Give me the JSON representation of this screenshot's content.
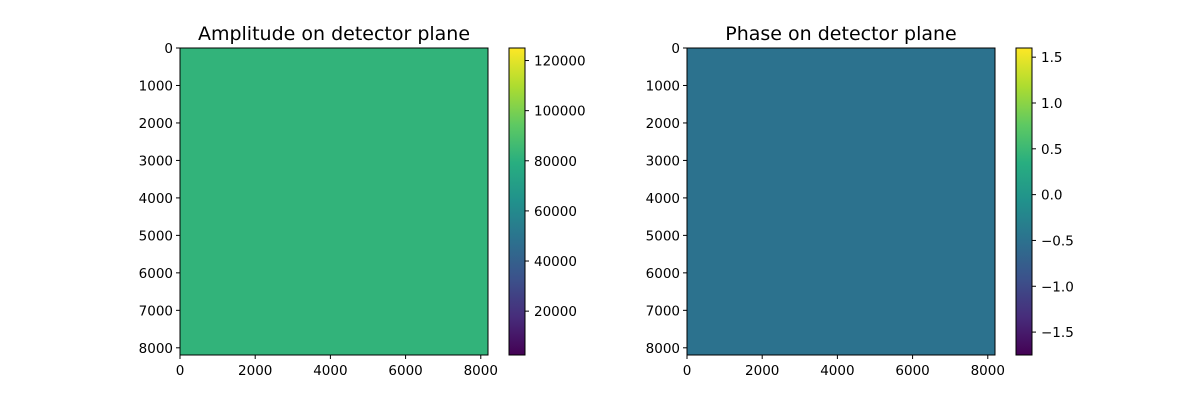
{
  "chart_data": [
    {
      "type": "heatmap",
      "title": "Amplitude on detector plane",
      "xlabel": "",
      "ylabel": "",
      "xlim": [
        0,
        8192
      ],
      "ylim": [
        8192,
        0
      ],
      "xticks": [
        0,
        2000,
        4000,
        6000,
        8000
      ],
      "yticks": [
        0,
        1000,
        2000,
        3000,
        4000,
        5000,
        6000,
        7000,
        8000
      ],
      "fill_value": 82000,
      "colormap": "viridis",
      "colorbar": {
        "range": [
          2500,
          125000
        ],
        "ticks": [
          20000,
          40000,
          60000,
          80000,
          100000,
          120000
        ]
      }
    },
    {
      "type": "heatmap",
      "title": "Phase on detector plane",
      "xlabel": "",
      "ylabel": "",
      "xlim": [
        0,
        8192
      ],
      "ylim": [
        8192,
        0
      ],
      "xticks": [
        0,
        2000,
        4000,
        6000,
        8000
      ],
      "yticks": [
        0,
        1000,
        2000,
        3000,
        4000,
        5000,
        6000,
        7000,
        8000
      ],
      "fill_value": -0.5,
      "colormap": "viridis",
      "colorbar": {
        "range": [
          -1.75,
          1.6
        ],
        "ticks": [
          -1.5,
          -1.0,
          -0.5,
          0.0,
          0.5,
          1.0,
          1.5
        ]
      }
    }
  ]
}
